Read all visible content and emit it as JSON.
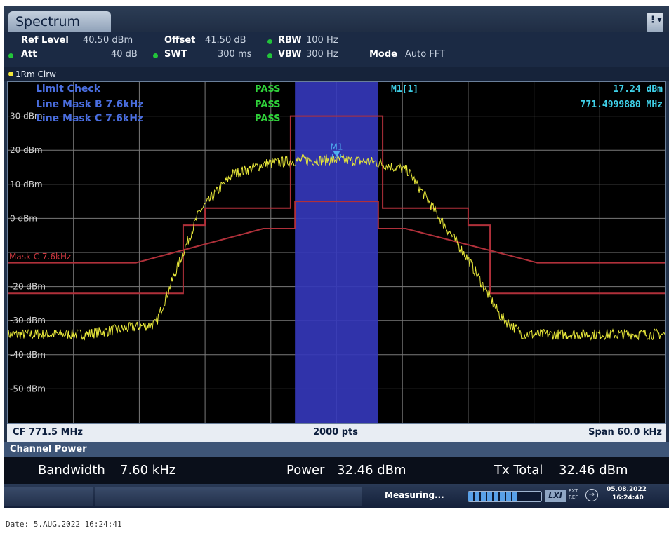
{
  "window": {
    "tab_title": "Spectrum",
    "menu_icon": "ellipsis-icon"
  },
  "settings": {
    "ref_level_label": "Ref Level",
    "ref_level_value": "40.50 dBm",
    "offset_label": "Offset",
    "offset_value": "41.50 dB",
    "rbw_label": "RBW",
    "rbw_value": "100 Hz",
    "att_label": "Att",
    "att_value": "40 dB",
    "swt_label": "SWT",
    "swt_value": "300 ms",
    "vbw_label": "VBW",
    "vbw_value": "300 Hz",
    "mode_label": "Mode",
    "mode_value": "Auto FFT"
  },
  "trace_info": "1Rm Clrw",
  "limit_check": {
    "title": "Limit Check",
    "title_status": "PASS",
    "lines": [
      {
        "label": "Line Mask B 7.6kHz",
        "status": "PASS"
      },
      {
        "label": "Line Mask C 7.6kHz",
        "status": "PASS"
      }
    ]
  },
  "marker": {
    "label": "M1[1]",
    "level": "17.24 dBm",
    "freq": "771.4999880 MHz",
    "plot_label": "M1",
    "tx_label": "TX1"
  },
  "mask_label": "Mask C 7.6kHz",
  "chart_data": {
    "type": "line",
    "y_tick_labels": [
      "30 dBm",
      "20 dBm",
      "10 dBm",
      "0 dBm",
      "-20 dBm",
      "-30 dBm",
      "-40 dBm",
      "-50 dBm"
    ],
    "ylim": [
      -60,
      40
    ],
    "xlim": [
      771.47,
      771.53
    ],
    "grid": true,
    "channel_bandwidth_khz": 7.6,
    "noise_floor_dbm": -34,
    "peak_dbm": 17.24,
    "series": [
      {
        "color": "#e8e83a",
        "points": [
          [
            771.47,
            -34
          ],
          [
            771.477,
            -34
          ],
          [
            771.4835,
            -31
          ],
          [
            771.4855,
            -14
          ],
          [
            771.4875,
            2
          ],
          [
            771.4905,
            13
          ],
          [
            771.4935,
            16
          ],
          [
            771.4965,
            17
          ],
          [
            771.5,
            17.2
          ],
          [
            771.5035,
            16.5
          ],
          [
            771.5065,
            14
          ],
          [
            771.509,
            2
          ],
          [
            771.512,
            -12
          ],
          [
            771.515,
            -29
          ],
          [
            771.517,
            -34
          ],
          [
            771.53,
            -34
          ]
        ]
      }
    ],
    "masks": [
      {
        "name": "Mask B",
        "color": "#b0303a",
        "points": [
          [
            771.4675,
            -13
          ],
          [
            771.4817,
            -13
          ],
          [
            771.4933,
            -3
          ],
          [
            771.4962,
            -3
          ],
          [
            771.4962,
            5
          ],
          [
            771.5038,
            5
          ],
          [
            771.5038,
            -3
          ],
          [
            771.5063,
            -3
          ],
          [
            771.5183,
            -13
          ],
          [
            771.5325,
            -13
          ]
        ]
      },
      {
        "name": "Mask C",
        "color": "#b0303a",
        "points": [
          [
            771.4675,
            -22
          ],
          [
            771.486,
            -22
          ],
          [
            771.486,
            -2
          ],
          [
            771.488,
            -2
          ],
          [
            771.488,
            3
          ],
          [
            771.4958,
            3
          ],
          [
            771.4958,
            30
          ],
          [
            771.5042,
            30
          ],
          [
            771.5042,
            3
          ],
          [
            771.512,
            3
          ],
          [
            771.512,
            -2
          ],
          [
            771.514,
            -2
          ],
          [
            771.514,
            -22
          ],
          [
            771.5325,
            -22
          ]
        ]
      }
    ]
  },
  "footer": {
    "cf": "CF 771.5 MHz",
    "points": "2000 pts",
    "span": "Span 60.0 kHz"
  },
  "channel_power": {
    "header": "Channel Power",
    "bandwidth_label": "Bandwidth",
    "bandwidth_value": "7.60 kHz",
    "power_label": "Power",
    "power_value": "32.46 dBm",
    "tx_total_label": "Tx Total",
    "tx_total_value": "32.46 dBm"
  },
  "status": {
    "measuring": "Measuring...",
    "progress_fraction": 0.7,
    "date": "05.08.2022",
    "time": "16:24:40",
    "ext_ref": "EXT REF",
    "lxi": "LXI"
  },
  "date_line": "Date: 5.AUG.2022  16:24:41"
}
